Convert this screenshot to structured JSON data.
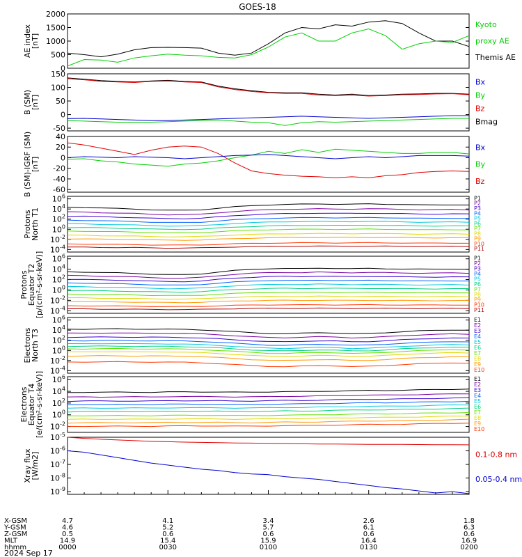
{
  "title": "GOES-18",
  "date_label": "2024 Sep 17",
  "colors": {
    "black": "#000000",
    "red": "#e00000",
    "green": "#00d000",
    "blue": "#0000d0",
    "ramp": [
      "#000000",
      "#7a00a0",
      "#3c00d0",
      "#0060ff",
      "#00c8e0",
      "#00d080",
      "#60e000",
      "#e0d800",
      "#ff9800",
      "#ff3800",
      "#b00000"
    ]
  },
  "x_axis": {
    "time_ticks": [
      "0000",
      "0030",
      "0100",
      "0130",
      "0200"
    ],
    "rows": [
      {
        "label": "X-GSM",
        "values": [
          "4.7",
          "4.1",
          "3.4",
          "2.6",
          "1.8"
        ]
      },
      {
        "label": "Y-GSM",
        "values": [
          "4.6",
          "5.2",
          "5.7",
          "6.1",
          "6.3"
        ]
      },
      {
        "label": "Z-GSM",
        "values": [
          "0.5",
          "0.6",
          "0.6",
          "0.6",
          "0.6"
        ]
      },
      {
        "label": "MLT",
        "values": [
          "14.9",
          "15.4",
          "15.9",
          "16.4",
          "16.9"
        ]
      },
      {
        "label": "hhmm",
        "values": [
          "0000",
          "0030",
          "0100",
          "0130",
          "0200"
        ]
      }
    ]
  },
  "panels": [
    {
      "id": "ae",
      "ylabel": [
        "AE index",
        "[nT]"
      ],
      "type": "line",
      "yticks": [
        "2000",
        "1500",
        "1000",
        "500",
        "0"
      ],
      "legend": [
        {
          "text": "Kyoto",
          "color": "#00d000"
        },
        {
          "text": "proxy AE",
          "color": "#00d000"
        },
        {
          "text": "Themis AE",
          "color": "#000000"
        }
      ]
    },
    {
      "id": "bsm",
      "ylabel": [
        "B (SM)",
        "[nT]"
      ],
      "type": "line",
      "yticks": [
        "150",
        "100",
        "50",
        "0",
        "-50"
      ],
      "legend": [
        {
          "text": "Bx",
          "color": "#0000d0"
        },
        {
          "text": "By",
          "color": "#00d000"
        },
        {
          "text": "Bz",
          "color": "#e00000"
        },
        {
          "text": "Bmag",
          "color": "#000000"
        }
      ]
    },
    {
      "id": "bigrf",
      "ylabel": [
        "B (SM)-IGRF (SM)",
        "[nT]"
      ],
      "type": "line",
      "yticks": [
        "40",
        "20",
        "0",
        "-20",
        "-40",
        "-60"
      ],
      "legend": [
        {
          "text": "Bx",
          "color": "#0000d0"
        },
        {
          "text": "By",
          "color": "#00d000"
        },
        {
          "text": "Bz",
          "color": "#e00000"
        }
      ]
    },
    {
      "id": "pn",
      "ylabel": [
        "Protons",
        "North T1"
      ],
      "type": "line",
      "yscale": "log",
      "yticks_exp": [
        "6",
        "4",
        "2",
        "0",
        "-2",
        "-4"
      ],
      "legend": [
        {
          "text": "P1"
        },
        {
          "text": "P2"
        },
        {
          "text": "P3"
        },
        {
          "text": "P4"
        },
        {
          "text": "P5"
        },
        {
          "text": "P6"
        },
        {
          "text": "P7"
        },
        {
          "text": "P8"
        },
        {
          "text": "P9"
        },
        {
          "text": "P10"
        },
        {
          "text": "P11"
        }
      ]
    },
    {
      "id": "pe",
      "ylabel": [
        "Protons",
        "Equator T2",
        "[p/(cm²-s-sr-keV)]"
      ],
      "type": "line",
      "yscale": "log",
      "yticks_exp": [
        "6",
        "4",
        "2",
        "0",
        "-2",
        "-4"
      ],
      "legend": [
        {
          "text": "P1"
        },
        {
          "text": "P2"
        },
        {
          "text": "P3"
        },
        {
          "text": "P4"
        },
        {
          "text": "P5"
        },
        {
          "text": "P6"
        },
        {
          "text": "P7"
        },
        {
          "text": "P8"
        },
        {
          "text": "P9"
        },
        {
          "text": "P10"
        },
        {
          "text": "P11"
        }
      ]
    },
    {
      "id": "en",
      "ylabel": [
        "Electrons",
        "North T3"
      ],
      "type": "line",
      "yscale": "log",
      "yticks_exp": [
        "6",
        "4",
        "2",
        "0",
        "-2",
        "-4"
      ],
      "legend": [
        {
          "text": "E1"
        },
        {
          "text": "E2"
        },
        {
          "text": "E3"
        },
        {
          "text": "E4"
        },
        {
          "text": "E5"
        },
        {
          "text": "E6"
        },
        {
          "text": "E7"
        },
        {
          "text": "E8"
        },
        {
          "text": "E9"
        },
        {
          "text": "E10"
        }
      ]
    },
    {
      "id": "ee",
      "ylabel": [
        "Electrons",
        "Equator T4",
        "[e/(cm²-s-sr-keV)]"
      ],
      "type": "line",
      "yscale": "log",
      "yticks_exp": [
        "6",
        "4",
        "2",
        "0",
        "-2"
      ],
      "legend": [
        {
          "text": "E1"
        },
        {
          "text": "E2"
        },
        {
          "text": "E3"
        },
        {
          "text": "E4"
        },
        {
          "text": "E5"
        },
        {
          "text": "E6"
        },
        {
          "text": "E7"
        },
        {
          "text": "E8"
        },
        {
          "text": "E9"
        },
        {
          "text": "E10"
        }
      ]
    },
    {
      "id": "xray",
      "ylabel": [
        "Xray flux",
        "[W/m2]"
      ],
      "type": "line",
      "yscale": "log",
      "yticks_exp": [
        "-5",
        "-6",
        "-7",
        "-8",
        "-9"
      ],
      "legend": [
        {
          "text": "0.1-0.8 nm",
          "color": "#e00000"
        },
        {
          "text": "0.05-0.4 nm",
          "color": "#0000d0"
        }
      ]
    }
  ],
  "chart_data": {
    "type": "line",
    "x": [
      0,
      5,
      10,
      15,
      20,
      25,
      30,
      35,
      40,
      45,
      50,
      55,
      60,
      65,
      70,
      75,
      80,
      85,
      90,
      95,
      100,
      105,
      110,
      115,
      120
    ],
    "x_unit": "minutes after 0000 UT",
    "panels": [
      {
        "id": "ae",
        "ylim": [
          0,
          2000
        ],
        "series": [
          {
            "name": "Themis AE",
            "color": "#000000",
            "values": [
              560,
              500,
              420,
              520,
              680,
              760,
              770,
              760,
              740,
              560,
              480,
              560,
              900,
              1300,
              1500,
              1450,
              1600,
              1550,
              1700,
              1750,
              1650,
              1300,
              1000,
              1000,
              800
            ]
          },
          {
            "name": "Kyoto proxy AE",
            "color": "#00d000",
            "values": [
              80,
              320,
              300,
              220,
              380,
              460,
              520,
              480,
              460,
              400,
              380,
              500,
              780,
              1150,
              1300,
              1000,
              1000,
              1300,
              1450,
              1200,
              700,
              900,
              1000,
              950,
              1200
            ]
          }
        ]
      },
      {
        "id": "bsm",
        "ylim": [
          -60,
          150
        ],
        "series": [
          {
            "name": "Bmag",
            "color": "#000000",
            "values": [
              135,
              130,
              125,
              122,
              120,
              124,
              126,
              122,
              120,
              105,
              95,
              88,
              82,
              80,
              80,
              75,
              72,
              75,
              70,
              72,
              75,
              76,
              78,
              78,
              75
            ]
          },
          {
            "name": "Bz",
            "color": "#e00000",
            "values": [
              132,
              128,
              122,
              120,
              118,
              122,
              124,
              120,
              118,
              102,
              92,
              85,
              80,
              78,
              78,
              72,
              70,
              72,
              68,
              70,
              73,
              74,
              76,
              77,
              73
            ]
          },
          {
            "name": "Bx",
            "color": "#0000d0",
            "values": [
              -15,
              -14,
              -16,
              -18,
              -20,
              -22,
              -22,
              -20,
              -18,
              -16,
              -14,
              -12,
              -10,
              -8,
              -6,
              -8,
              -10,
              -12,
              -14,
              -12,
              -10,
              -8,
              -6,
              -4,
              -4
            ]
          },
          {
            "name": "By",
            "color": "#00d000",
            "values": [
              -22,
              -24,
              -26,
              -28,
              -28,
              -28,
              -26,
              -24,
              -22,
              -20,
              -24,
              -28,
              -30,
              -40,
              -30,
              -26,
              -28,
              -26,
              -24,
              -22,
              -20,
              -18,
              -16,
              -14,
              -14
            ]
          }
        ]
      },
      {
        "id": "bigrf",
        "ylim": [
          -65,
          40
        ],
        "series": [
          {
            "name": "Bz",
            "color": "#e00000",
            "values": [
              28,
              24,
              18,
              12,
              6,
              14,
              20,
              22,
              20,
              8,
              -10,
              -25,
              -30,
              -33,
              -35,
              -36,
              -38,
              -36,
              -38,
              -34,
              -32,
              -28,
              -26,
              -25,
              -26
            ]
          },
          {
            "name": "By",
            "color": "#00d000",
            "values": [
              -3,
              -2,
              -6,
              -8,
              -12,
              -14,
              -16,
              -12,
              -10,
              -6,
              0,
              5,
              12,
              8,
              15,
              10,
              16,
              14,
              12,
              10,
              8,
              8,
              10,
              10,
              7
            ]
          },
          {
            "name": "Bx",
            "color": "#0000d0",
            "values": [
              0,
              2,
              1,
              0,
              2,
              1,
              0,
              -2,
              0,
              2,
              4,
              5,
              6,
              4,
              2,
              0,
              -2,
              0,
              2,
              0,
              2,
              4,
              4,
              4,
              3
            ]
          }
        ]
      },
      {
        "id": "pn",
        "ylim": [
          -4.5,
          6.5
        ],
        "yscale": "log",
        "series_profile": {
          "levels": [
            4.1,
            3.2,
            2.4,
            1.6,
            0.9,
            0.2,
            -0.5,
            -1.3,
            -2.0,
            -3.0,
            -3.6
          ],
          "shape": [
            0.25,
            0.2,
            0.1,
            0,
            -0.1,
            -0.25,
            -0.35,
            -0.35,
            -0.25,
            0.05,
            0.35,
            0.55,
            0.7,
            0.8,
            0.85,
            0.9,
            0.85,
            0.85,
            0.9,
            0.85,
            0.8,
            0.7,
            0.7,
            0.75,
            0.7
          ],
          "decay": 0.07,
          "names": [
            "P1",
            "P2",
            "P3",
            "P4",
            "P5",
            "P6",
            "P7",
            "P8",
            "P9",
            "P10",
            "P11"
          ]
        }
      },
      {
        "id": "pe",
        "ylim": [
          -4.5,
          6.5
        ],
        "yscale": "log",
        "series_profile": {
          "levels": [
            3.3,
            2.6,
            1.9,
            1.2,
            0.5,
            -0.2,
            -0.9,
            -1.6,
            -2.3,
            -3.1,
            -3.7
          ],
          "shape": [
            0.2,
            0.15,
            0.05,
            0,
            -0.1,
            -0.25,
            -0.35,
            -0.35,
            -0.2,
            0.15,
            0.45,
            0.65,
            0.8,
            0.85,
            0.8,
            0.9,
            0.85,
            0.8,
            0.85,
            0.8,
            0.75,
            0.7,
            0.7,
            0.75,
            0.7
          ],
          "decay": 0.08,
          "names": [
            "P1",
            "P2",
            "P3",
            "P4",
            "P5",
            "P6",
            "P7",
            "P8",
            "P9",
            "P10",
            "P11"
          ]
        }
      },
      {
        "id": "en",
        "ylim": [
          -4.5,
          6.5
        ],
        "yscale": "log",
        "series_profile": {
          "levels": [
            4.2,
            3.4,
            2.6,
            1.9,
            1.3,
            0.8,
            0.3,
            -0.3,
            -1.1,
            -2.3
          ],
          "shape": [
            0,
            0,
            0.05,
            0.05,
            0,
            0,
            0,
            -0.05,
            -0.15,
            -0.3,
            -0.5,
            -0.7,
            -0.85,
            -0.9,
            -0.8,
            -0.7,
            -0.75,
            -0.9,
            -0.85,
            -0.7,
            -0.5,
            -0.35,
            -0.25,
            -0.15,
            -0.2
          ],
          "decay": 0.0,
          "names": [
            "E1",
            "E2",
            "E3",
            "E4",
            "E5",
            "E6",
            "E7",
            "E8",
            "E9",
            "E10"
          ]
        }
      },
      {
        "id": "ee",
        "ylim": [
          -3,
          6.5
        ],
        "yscale": "log",
        "series_profile": {
          "levels": [
            3.8,
            3.0,
            2.3,
            1.7,
            1.1,
            0.5,
            -0.2,
            -0.8,
            -1.4,
            -2.0
          ],
          "shape": [
            0,
            0.05,
            0.05,
            0.05,
            0.05,
            0.05,
            0.1,
            0.1,
            0.1,
            0.1,
            0.05,
            0.05,
            0.1,
            0.15,
            0.15,
            0.2,
            0.25,
            0.3,
            0.35,
            0.35,
            0.4,
            0.45,
            0.5,
            0.55,
            0.6
          ],
          "decay": 0.0,
          "names": [
            "E1",
            "E2",
            "E3",
            "E4",
            "E5",
            "E6",
            "E7",
            "E8",
            "E9",
            "E10"
          ]
        }
      },
      {
        "id": "xray",
        "ylim": [
          -9.2,
          -5
        ],
        "yscale": "log",
        "series": [
          {
            "name": "0.1-0.8 nm",
            "color": "#e00000",
            "values": [
              -5.0,
              -5.08,
              -5.15,
              -5.2,
              -5.25,
              -5.3,
              -5.33,
              -5.36,
              -5.38,
              -5.4,
              -5.42,
              -5.43,
              -5.45,
              -5.46,
              -5.48,
              -5.5,
              -5.5,
              -5.51,
              -5.52,
              -5.53,
              -5.53,
              -5.54,
              -5.55,
              -5.55,
              -5.56
            ]
          },
          {
            "name": "0.05-0.4 nm",
            "color": "#0000d0",
            "values": [
              -6.0,
              -6.1,
              -6.3,
              -6.5,
              -6.7,
              -6.9,
              -7.05,
              -7.2,
              -7.35,
              -7.45,
              -7.6,
              -7.7,
              -7.75,
              -7.9,
              -8.0,
              -8.1,
              -8.25,
              -8.4,
              -8.55,
              -8.7,
              -8.8,
              -8.95,
              -9.1,
              -9.0,
              -9.15
            ]
          }
        ]
      }
    ]
  }
}
